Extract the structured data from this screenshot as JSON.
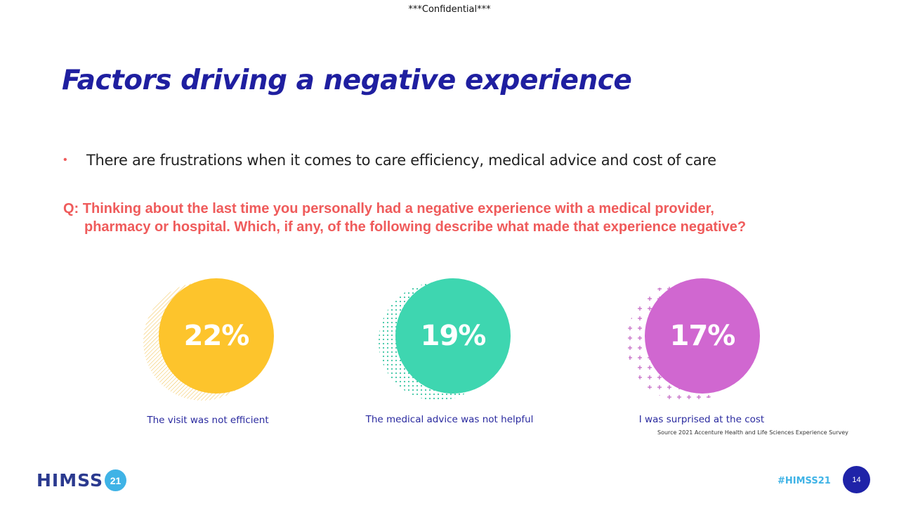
{
  "header": {
    "confidential": "***Confidential***"
  },
  "slide": {
    "title": "Factors driving a negative experience",
    "bullet": "There are frustrations when it comes to care efficiency, medical advice and cost of care",
    "question_line1": "Q: Thinking about the last time you personally had a negative experience with a medical provider,",
    "question_line2": "pharmacy or hospital. Which, if any, of the following describe what made that experience negative?"
  },
  "stats": [
    {
      "value": "22%",
      "label": "The visit was not efficient",
      "color": "#fdc42c",
      "pattern_color": "#f2c04a"
    },
    {
      "value": "19%",
      "label": "The medical advice was not helpful",
      "color": "#3ed6b0",
      "pattern_color": "#3cc6a4"
    },
    {
      "value": "17%",
      "label": "I was surprised at the cost",
      "color": "#d067d0",
      "pattern_color": "#c56cc6"
    }
  ],
  "source": "Source 2021 Accenture Health and Life Sciences Experience Survey",
  "footer": {
    "logo_text": "HIMSS",
    "logo_badge": "21",
    "hashtag": "#HIMSS21",
    "page_number": "14"
  }
}
